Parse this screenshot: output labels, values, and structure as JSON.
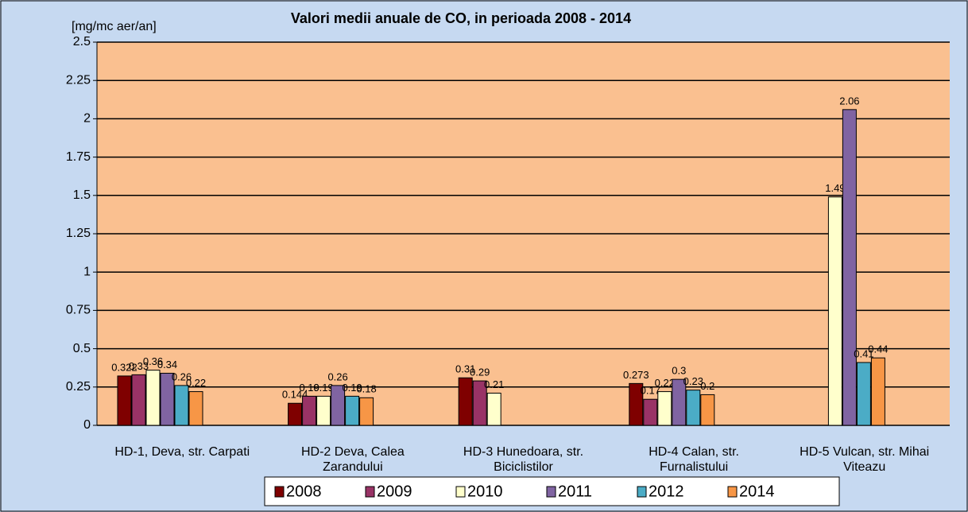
{
  "chart_data": {
    "type": "bar",
    "title": "Valori medii anuale de CO, in perioada 2008 - 2014",
    "y_axis_label": "[mg/mc aer/an]",
    "categories": [
      "HD-1, Deva, str. Carpati",
      "HD-2 Deva, Calea Zarandului",
      "HD-3 Hunedoara, str. Biciclistilor",
      "HD-4 Calan, str. Furnalistului",
      "HD-5 Vulcan, str. Mihai Viteazu"
    ],
    "series": [
      {
        "name": "2008",
        "color": "#7f0000",
        "values": [
          0.322,
          0.144,
          0.31,
          0.273,
          null
        ]
      },
      {
        "name": "2009",
        "color": "#993366",
        "values": [
          0.33,
          0.19,
          0.29,
          0.17,
          null
        ]
      },
      {
        "name": "2010",
        "color": "#ffffcc",
        "values": [
          0.36,
          0.19,
          0.21,
          0.22,
          1.49
        ]
      },
      {
        "name": "2011",
        "color": "#8064a2",
        "values": [
          0.34,
          0.26,
          null,
          0.3,
          2.06
        ]
      },
      {
        "name": "2012",
        "color": "#4bacc6",
        "values": [
          0.26,
          0.19,
          null,
          0.23,
          0.41
        ]
      },
      {
        "name": "2014",
        "color": "#f79646",
        "values": [
          0.22,
          0.18,
          null,
          0.2,
          0.44
        ]
      }
    ],
    "ylim": [
      0,
      2.5
    ],
    "yticks": [
      0,
      0.25,
      0.5,
      0.75,
      1,
      1.25,
      1.5,
      1.75,
      2,
      2.25,
      2.5
    ],
    "grid": true
  }
}
